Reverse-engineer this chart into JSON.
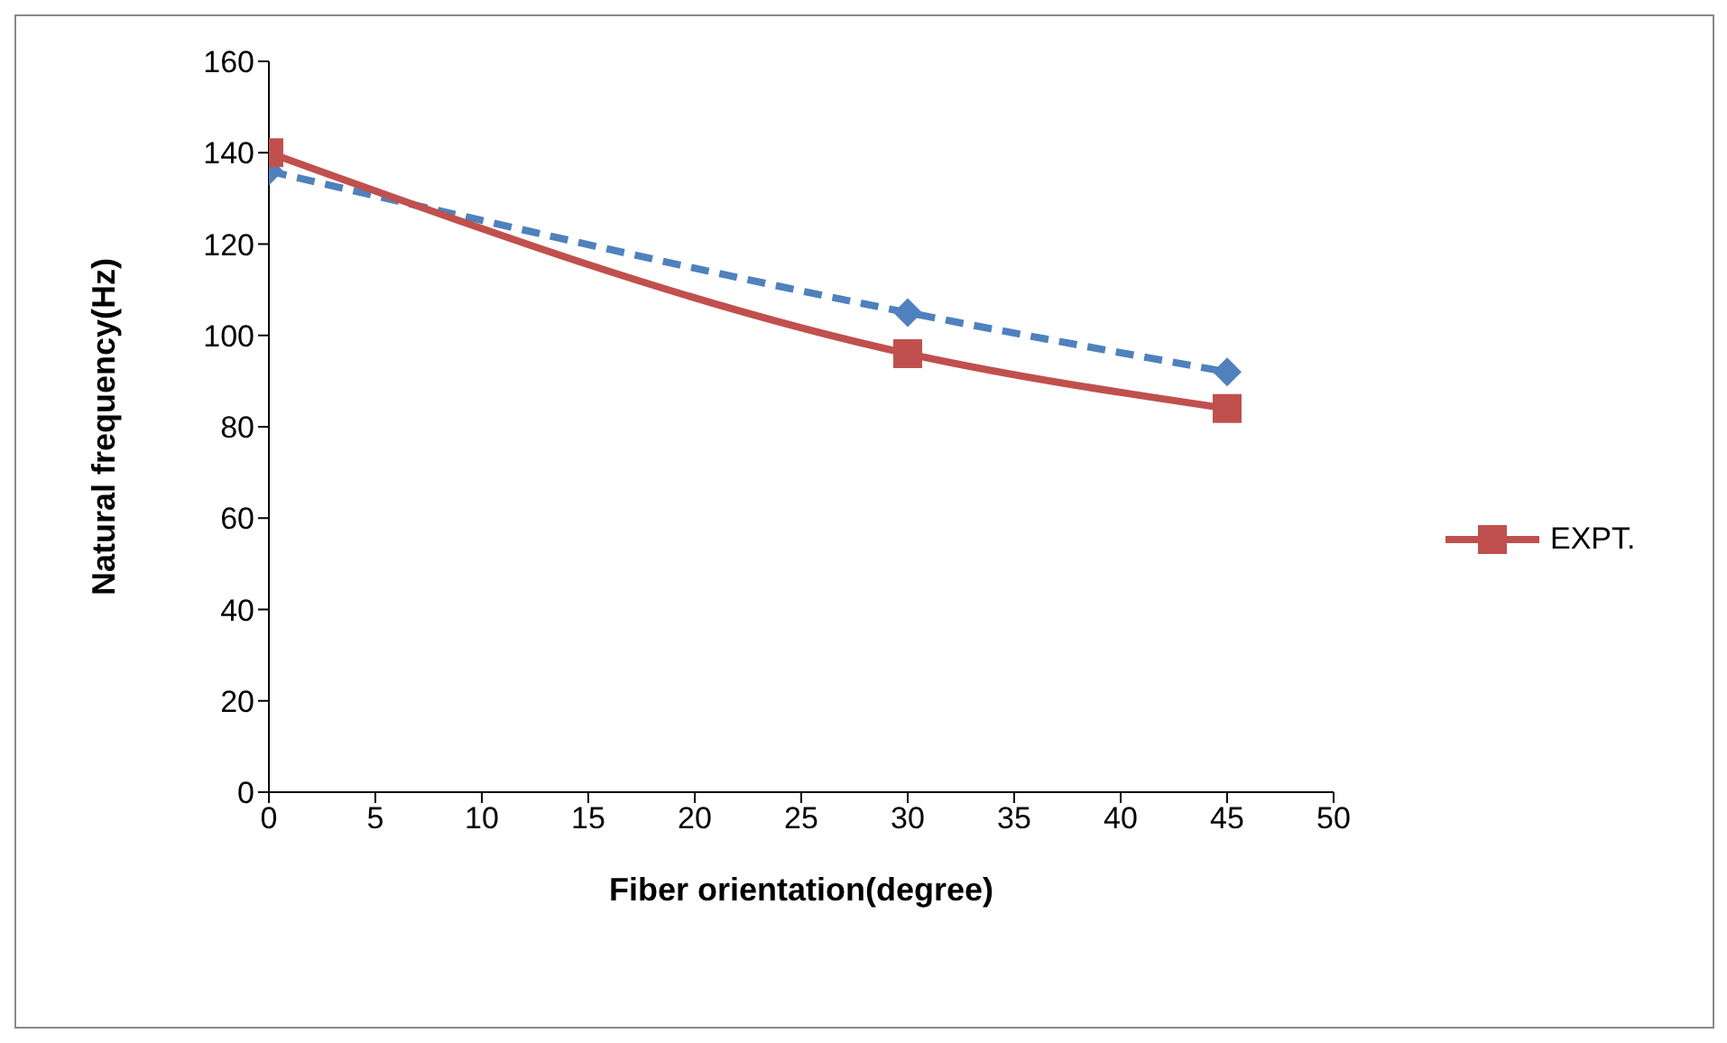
{
  "chart_data": {
    "type": "line",
    "xlabel": "Fiber orientation(degree)",
    "ylabel": "Natural frequency(Hz)",
    "xlim": [
      0,
      50
    ],
    "xticks": [
      0,
      5,
      10,
      15,
      20,
      25,
      30,
      35,
      40,
      45,
      50
    ],
    "ylim": [
      0,
      160
    ],
    "yticks": [
      0,
      20,
      40,
      60,
      80,
      100,
      120,
      140,
      160
    ],
    "grid": false,
    "legend": "right",
    "series": [
      {
        "color": "#4f81bd",
        "x": [
          0,
          30,
          45
        ],
        "values": [
          136,
          105,
          92
        ],
        "marker": "diamond",
        "line_style": "dashed"
      },
      {
        "name": "EXPT.",
        "color": "#c0504d",
        "x": [
          0,
          30,
          45
        ],
        "values": [
          140,
          96,
          84
        ],
        "marker": "square",
        "line_style": "solid"
      }
    ]
  }
}
